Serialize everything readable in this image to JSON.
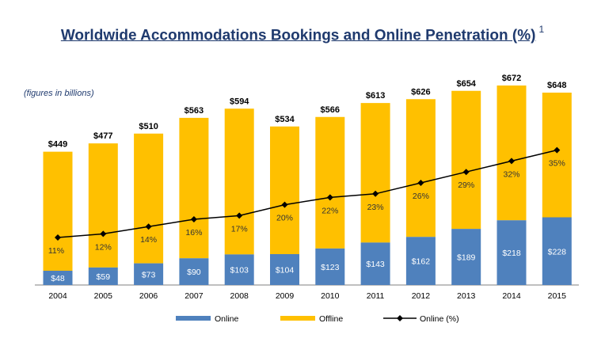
{
  "title": "Worldwide Accommodations Bookings and Online Penetration (%)",
  "title_superscript": "1",
  "note": "(figures in billions)",
  "colors": {
    "online": "#4f81bd",
    "offline": "#ffc000",
    "line": "#000000",
    "title": "#1f3a6e"
  },
  "chart_data": {
    "type": "bar",
    "stacked": true,
    "categories": [
      "2004",
      "2005",
      "2006",
      "2007",
      "2008",
      "2009",
      "2010",
      "2011",
      "2012",
      "2013",
      "2014",
      "2015"
    ],
    "totals": [
      449,
      477,
      510,
      563,
      594,
      534,
      566,
      613,
      626,
      654,
      672,
      648
    ],
    "total_labels": [
      "$449",
      "$477",
      "$510",
      "$563",
      "$594",
      "$534",
      "$566",
      "$613",
      "$626",
      "$654",
      "$672",
      "$648"
    ],
    "series": [
      {
        "name": "Online",
        "values": [
          48,
          59,
          73,
          90,
          103,
          104,
          123,
          143,
          162,
          189,
          218,
          228
        ],
        "labels": [
          "$48",
          "$59",
          "$73",
          "$90",
          "$103",
          "$104",
          "$123",
          "$143",
          "$162",
          "$189",
          "$218",
          "$228"
        ]
      },
      {
        "name": "Offline",
        "values": [
          401,
          418,
          437,
          473,
          491,
          430,
          443,
          470,
          464,
          465,
          454,
          420
        ]
      }
    ],
    "line_series": {
      "name": "Online (%)",
      "values": [
        11,
        12,
        14,
        16,
        17,
        20,
        22,
        23,
        26,
        29,
        32,
        35
      ],
      "labels": [
        "11%",
        "12%",
        "14%",
        "16%",
        "17%",
        "20%",
        "22%",
        "23%",
        "26%",
        "29%",
        "32%",
        "35%"
      ]
    },
    "ylim": [
      0,
      680
    ],
    "legend": "bottom",
    "grid": false
  }
}
